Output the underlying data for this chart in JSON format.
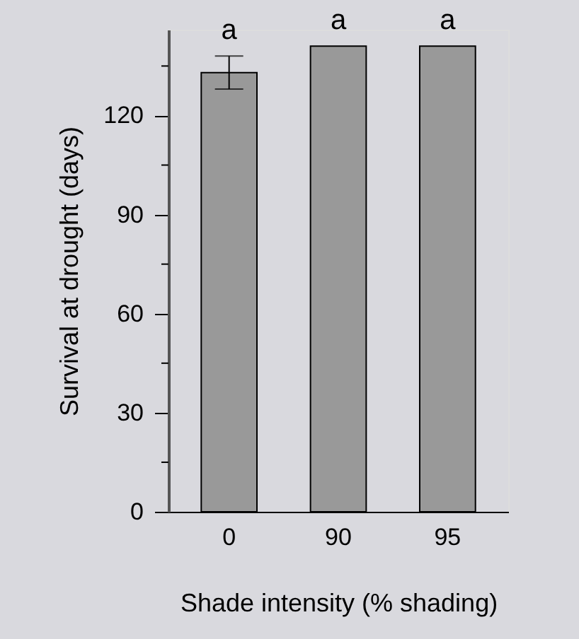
{
  "chart_data": {
    "type": "bar",
    "xlabel": "Shade intensity (% shading)",
    "ylabel": "Survival at drought (days)",
    "categories": [
      "0",
      "90",
      "95"
    ],
    "values": [
      133,
      141,
      141
    ],
    "errors": [
      5,
      null,
      null
    ],
    "color": "#999999",
    "ylim": [
      0,
      146
    ],
    "yticks": [
      0,
      {
        "value": 15,
        "label": null
      },
      30,
      {
        "value": 45,
        "label": null
      },
      60,
      {
        "value": 75,
        "label": null
      },
      90,
      {
        "value": 105,
        "label": null
      },
      120,
      {
        "value": 135,
        "label": null
      }
    ],
    "annotations": [
      {
        "text": "a",
        "x": "0",
        "y": 138
      },
      {
        "text": "a",
        "x": "90",
        "y": 141
      },
      {
        "text": "a",
        "x": "95",
        "y": 141
      }
    ]
  }
}
